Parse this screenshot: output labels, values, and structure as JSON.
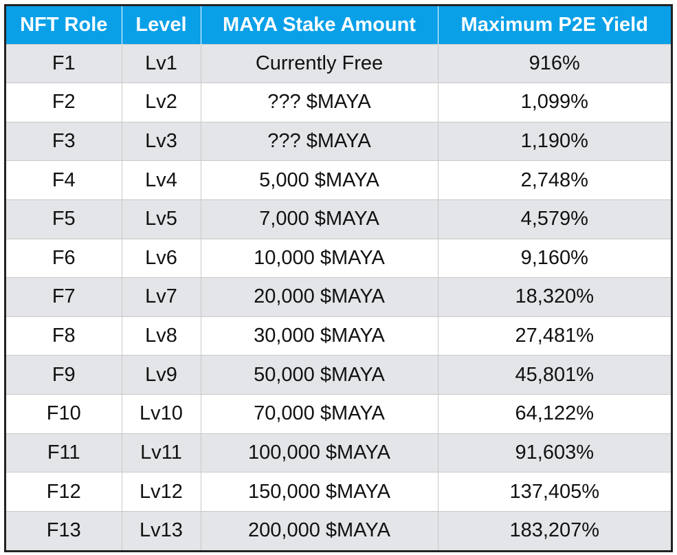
{
  "table": {
    "headers": [
      "NFT Role",
      "Level",
      "MAYA Stake Amount",
      "Maximum P2E Yield"
    ],
    "rows": [
      [
        "F1",
        "Lv1",
        "Currently Free",
        "916%"
      ],
      [
        "F2",
        "Lv2",
        "??? $MAYA",
        "1,099%"
      ],
      [
        "F3",
        "Lv3",
        "??? $MAYA",
        "1,190%"
      ],
      [
        "F4",
        "Lv4",
        "5,000 $MAYA",
        "2,748%"
      ],
      [
        "F5",
        "Lv5",
        "7,000 $MAYA",
        "4,579%"
      ],
      [
        "F6",
        "Lv6",
        "10,000 $MAYA",
        "9,160%"
      ],
      [
        "F7",
        "Lv7",
        "20,000 $MAYA",
        "18,320%"
      ],
      [
        "F8",
        "Lv8",
        "30,000 $MAYA",
        "27,481%"
      ],
      [
        "F9",
        "Lv9",
        "50,000 $MAYA",
        "45,801%"
      ],
      [
        "F10",
        "Lv10",
        "70,000 $MAYA",
        "64,122%"
      ],
      [
        "F11",
        "Lv11",
        "100,000 $MAYA",
        "91,603%"
      ],
      [
        "F12",
        "Lv12",
        "150,000 $MAYA",
        "137,405%"
      ],
      [
        "F13",
        "Lv13",
        "200,000 $MAYA",
        "183,207%"
      ]
    ]
  },
  "colors": {
    "header_bg": "#0aa0e8",
    "header_text": "#ffffff",
    "row_alt_bg": "#e3e5e8",
    "row_bg": "#ffffff",
    "border": "#222222"
  }
}
